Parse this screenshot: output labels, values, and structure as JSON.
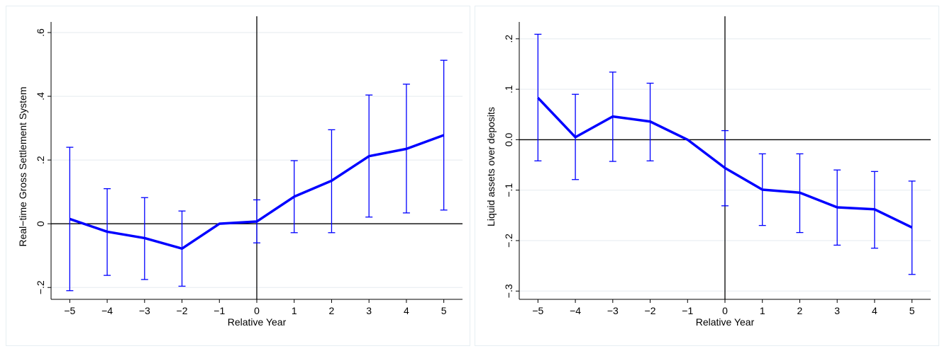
{
  "chart_data": [
    {
      "type": "line",
      "title": "",
      "xlabel": "Relative Year",
      "ylabel": "Real−time Gross Settlement System",
      "x": [
        -5,
        -4,
        -3,
        -2,
        -1,
        0,
        1,
        2,
        3,
        4,
        5
      ],
      "xticks": [
        "−5",
        "−4",
        "−3",
        "−2",
        "−1",
        "0",
        "1",
        "2",
        "3",
        "4",
        "5"
      ],
      "yticks": [
        {
          "value": -0.2,
          "label": "−.2"
        },
        {
          "value": 0,
          "label": "0"
        },
        {
          "value": 0.2,
          "label": ".2"
        },
        {
          "value": 0.4,
          "label": ".4"
        },
        {
          "value": 0.6,
          "label": ".6"
        }
      ],
      "ylim": [
        -0.235,
        0.62
      ],
      "xlim": [
        -5.5,
        5.5
      ],
      "grid": true,
      "series": [
        {
          "values": [
            0.015,
            -0.025,
            -0.045,
            -0.078,
            0.0,
            0.007,
            0.085,
            0.135,
            0.212,
            0.235,
            0.278
          ],
          "ci_low": [
            -0.21,
            -0.162,
            -0.175,
            -0.196,
            0.0,
            -0.06,
            -0.028,
            -0.028,
            0.021,
            0.034,
            0.043
          ],
          "ci_high": [
            0.24,
            0.11,
            0.082,
            0.04,
            0.0,
            0.075,
            0.198,
            0.295,
            0.404,
            0.438,
            0.513
          ]
        }
      ],
      "colors": {
        "line": "#0000ff",
        "ci": "#0000ff",
        "refline": "#000000",
        "grid": "#e5ebef"
      }
    },
    {
      "type": "line",
      "title": "",
      "xlabel": "Relative Year",
      "ylabel": "Liquid assets over deposits",
      "x": [
        -5,
        -4,
        -3,
        -2,
        -1,
        0,
        1,
        2,
        3,
        4,
        5
      ],
      "xticks": [
        "−5",
        "−4",
        "−3",
        "−2",
        "−1",
        "0",
        "1",
        "2",
        "3",
        "4",
        "5"
      ],
      "yticks": [
        {
          "value": -0.3,
          "label": "−.3"
        },
        {
          "value": -0.2,
          "label": "−.2"
        },
        {
          "value": -0.1,
          "label": "−.1"
        },
        {
          "value": 0,
          "label": "0.0"
        },
        {
          "value": 0.1,
          "label": ".1"
        },
        {
          "value": 0.2,
          "label": ".2"
        }
      ],
      "ylim": [
        -0.315,
        0.225
      ],
      "xlim": [
        -5.5,
        5.5
      ],
      "grid": true,
      "series": [
        {
          "values": [
            0.083,
            0.005,
            0.046,
            0.036,
            0.0,
            -0.056,
            -0.099,
            -0.105,
            -0.134,
            -0.138,
            -0.174
          ],
          "ci_low": [
            -0.042,
            -0.079,
            -0.043,
            -0.042,
            0.0,
            -0.131,
            -0.17,
            -0.184,
            -0.209,
            -0.215,
            -0.267
          ],
          "ci_high": [
            0.209,
            0.09,
            0.134,
            0.112,
            0.0,
            0.018,
            -0.028,
            -0.028,
            -0.06,
            -0.063,
            -0.082
          ]
        }
      ],
      "colors": {
        "line": "#0000ff",
        "ci": "#0000ff",
        "refline": "#000000",
        "grid": "#e5ebef"
      }
    }
  ]
}
